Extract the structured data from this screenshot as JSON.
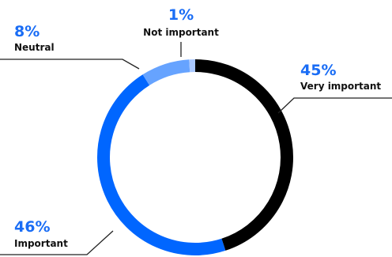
{
  "chart_data": {
    "type": "pie",
    "style": "donut",
    "title": "",
    "slices": [
      {
        "label": "Very important",
        "percent_text": "45%",
        "value": 45,
        "color": "#000000"
      },
      {
        "label": "Important",
        "percent_text": "46%",
        "value": 46,
        "color": "#0066ff"
      },
      {
        "label": "Neutral",
        "percent_text": "8%",
        "value": 8,
        "color": "#66a3ff"
      },
      {
        "label": "Not important",
        "percent_text": "1%",
        "value": 1,
        "color": "#a9c8ff"
      }
    ]
  }
}
